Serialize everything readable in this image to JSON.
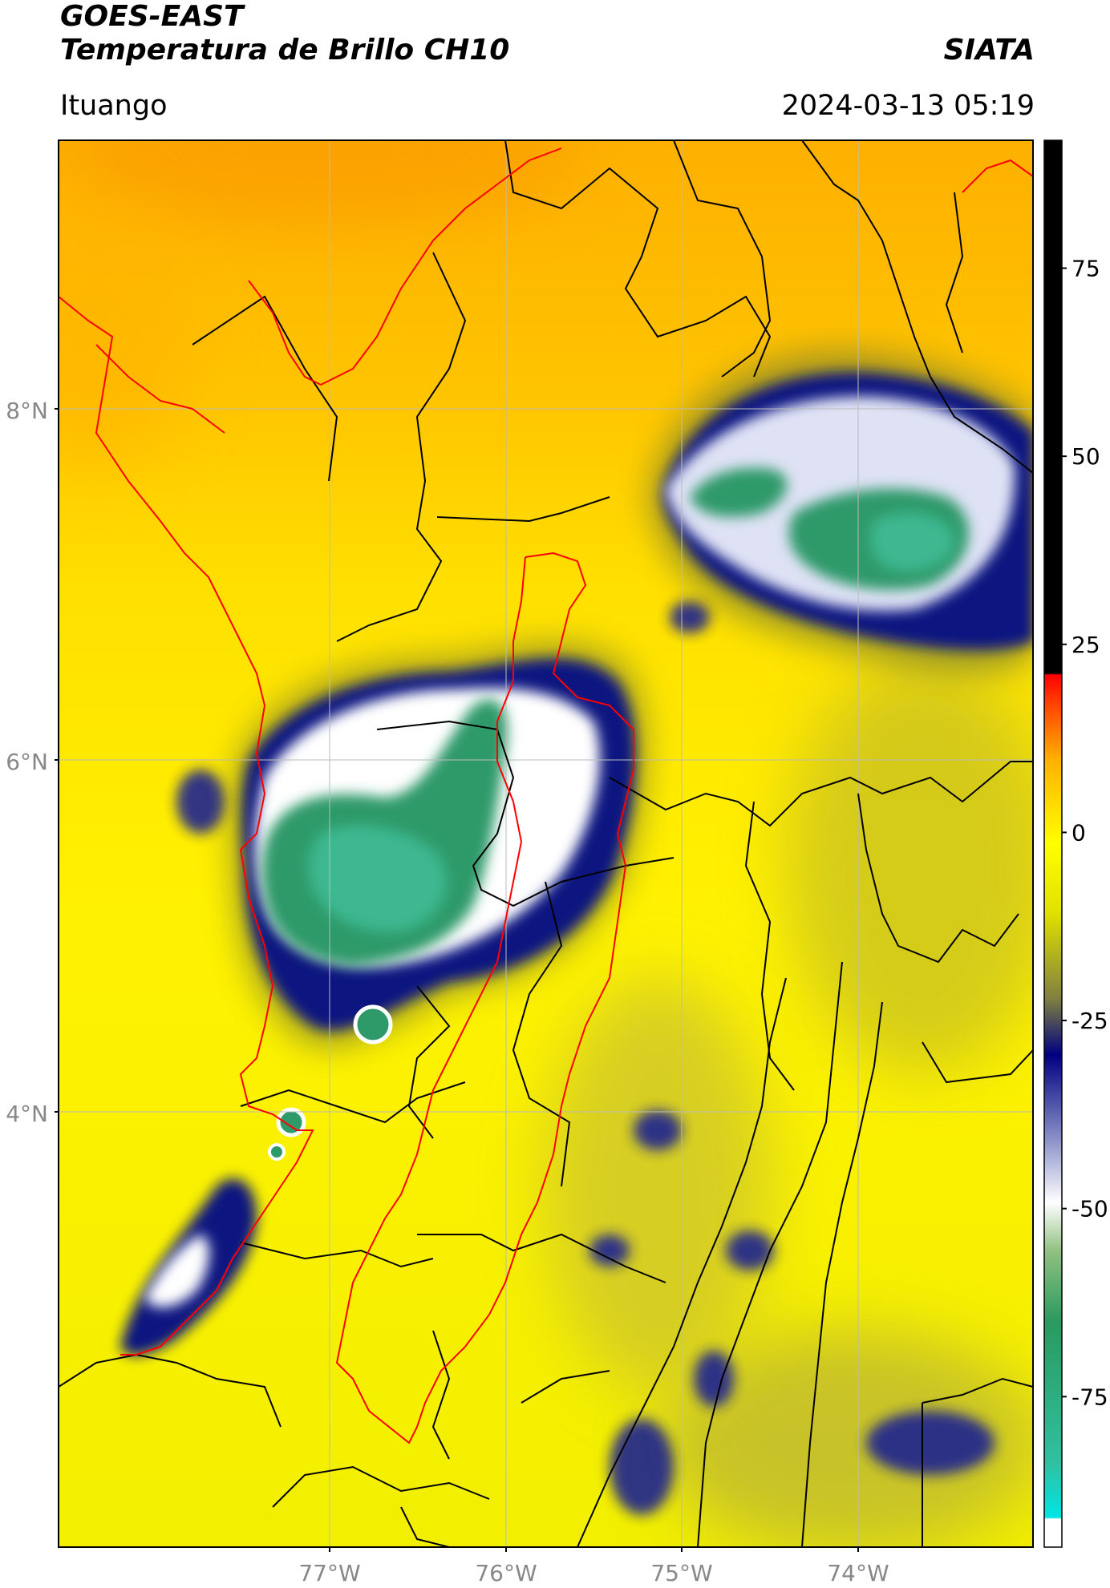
{
  "header": {
    "satellite": "GOES-EAST",
    "product": "Temperatura de Brillo CH10",
    "organization": "SIATA",
    "location": "Ituango",
    "timestamp": "2024-03-13 05:19"
  },
  "map": {
    "lon_range": [
      -78.55,
      -73.0
    ],
    "lat_range": [
      2.25,
      9.55
    ],
    "lat_ticks": [
      {
        "label": "8°N",
        "value": 8
      },
      {
        "label": "6°N",
        "value": 6
      },
      {
        "label": "4°N",
        "value": 4
      }
    ],
    "lon_ticks": [
      {
        "label": "77°W",
        "value": -77
      },
      {
        "label": "76°W",
        "value": -76
      },
      {
        "label": "75°W",
        "value": -75
      },
      {
        "label": "74°W",
        "value": -74
      }
    ],
    "colors": {
      "boundary_red": "#ff0000",
      "boundary_black": "#000000",
      "grid": "#bbbbbb"
    }
  },
  "colorbar": {
    "range": [
      -95,
      92
    ],
    "ticks": [
      {
        "label": "75",
        "value": 75
      },
      {
        "label": "50",
        "value": 50
      },
      {
        "label": "25",
        "value": 25
      },
      {
        "label": "0",
        "value": 0
      },
      {
        "label": "-25",
        "value": -25
      },
      {
        "label": "-50",
        "value": -50
      },
      {
        "label": "-75",
        "value": -75
      }
    ]
  }
}
